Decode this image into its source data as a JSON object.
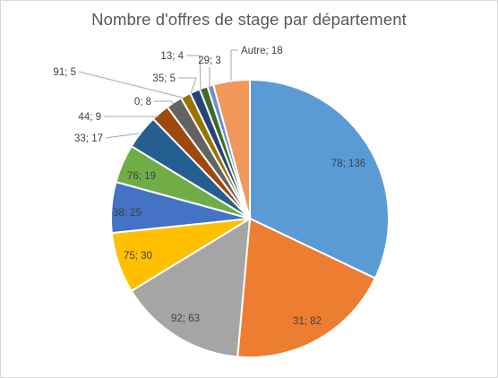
{
  "chart_data": {
    "type": "pie",
    "title": "Nombre d'offres de stage par département",
    "slices": [
      {
        "label": "78; 136",
        "category": "78",
        "value": 136,
        "color": "#5b9bd5"
      },
      {
        "label": "31; 82",
        "category": "31",
        "value": 82,
        "color": "#ed7d31"
      },
      {
        "label": "92; 63",
        "category": "92",
        "value": 63,
        "color": "#a5a5a5"
      },
      {
        "label": "75; 30",
        "category": "75",
        "value": 30,
        "color": "#ffc000"
      },
      {
        "label": "38; 25",
        "category": "38",
        "value": 25,
        "color": "#4472c4"
      },
      {
        "label": "76; 19",
        "category": "76",
        "value": 19,
        "color": "#70ad47"
      },
      {
        "label": "33; 17",
        "category": "33",
        "value": 17,
        "color": "#255e91"
      },
      {
        "label": "44; 9",
        "category": "44",
        "value": 9,
        "color": "#9e480e"
      },
      {
        "label": "0; 8",
        "category": "0",
        "value": 8,
        "color": "#636363"
      },
      {
        "label": "91; 5",
        "category": "91",
        "value": 5,
        "color": "#997300"
      },
      {
        "label": "35; 5",
        "category": "35",
        "value": 5,
        "color": "#264478"
      },
      {
        "label": "13; 4",
        "category": "13",
        "value": 4,
        "color": "#43682b"
      },
      {
        "label": "29; 3",
        "category": "29",
        "value": 3,
        "color": "#698ed0"
      },
      {
        "label": "Autre; 18",
        "category": "Autre",
        "value": 18,
        "color": "#f1975a"
      }
    ]
  }
}
